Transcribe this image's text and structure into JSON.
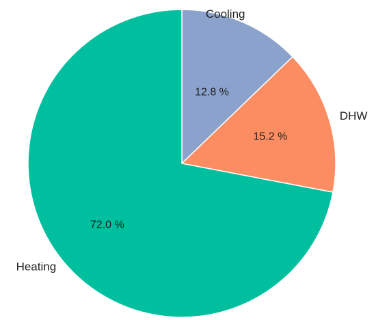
{
  "chart_data": {
    "type": "pie",
    "title": "",
    "start_angle": "12 o'clock",
    "direction": "clockwise",
    "legend": "none",
    "slices": [
      {
        "name": "Cooling",
        "value": 12.8,
        "label": "12.8 %",
        "color": "#8ba3cc"
      },
      {
        "name": "DHW",
        "value": 15.2,
        "label": "15.2 %",
        "color": "#fc8d62"
      },
      {
        "name": "Heating",
        "value": 72.0,
        "label": "72.0 %",
        "color": "#00bf9f"
      }
    ]
  }
}
